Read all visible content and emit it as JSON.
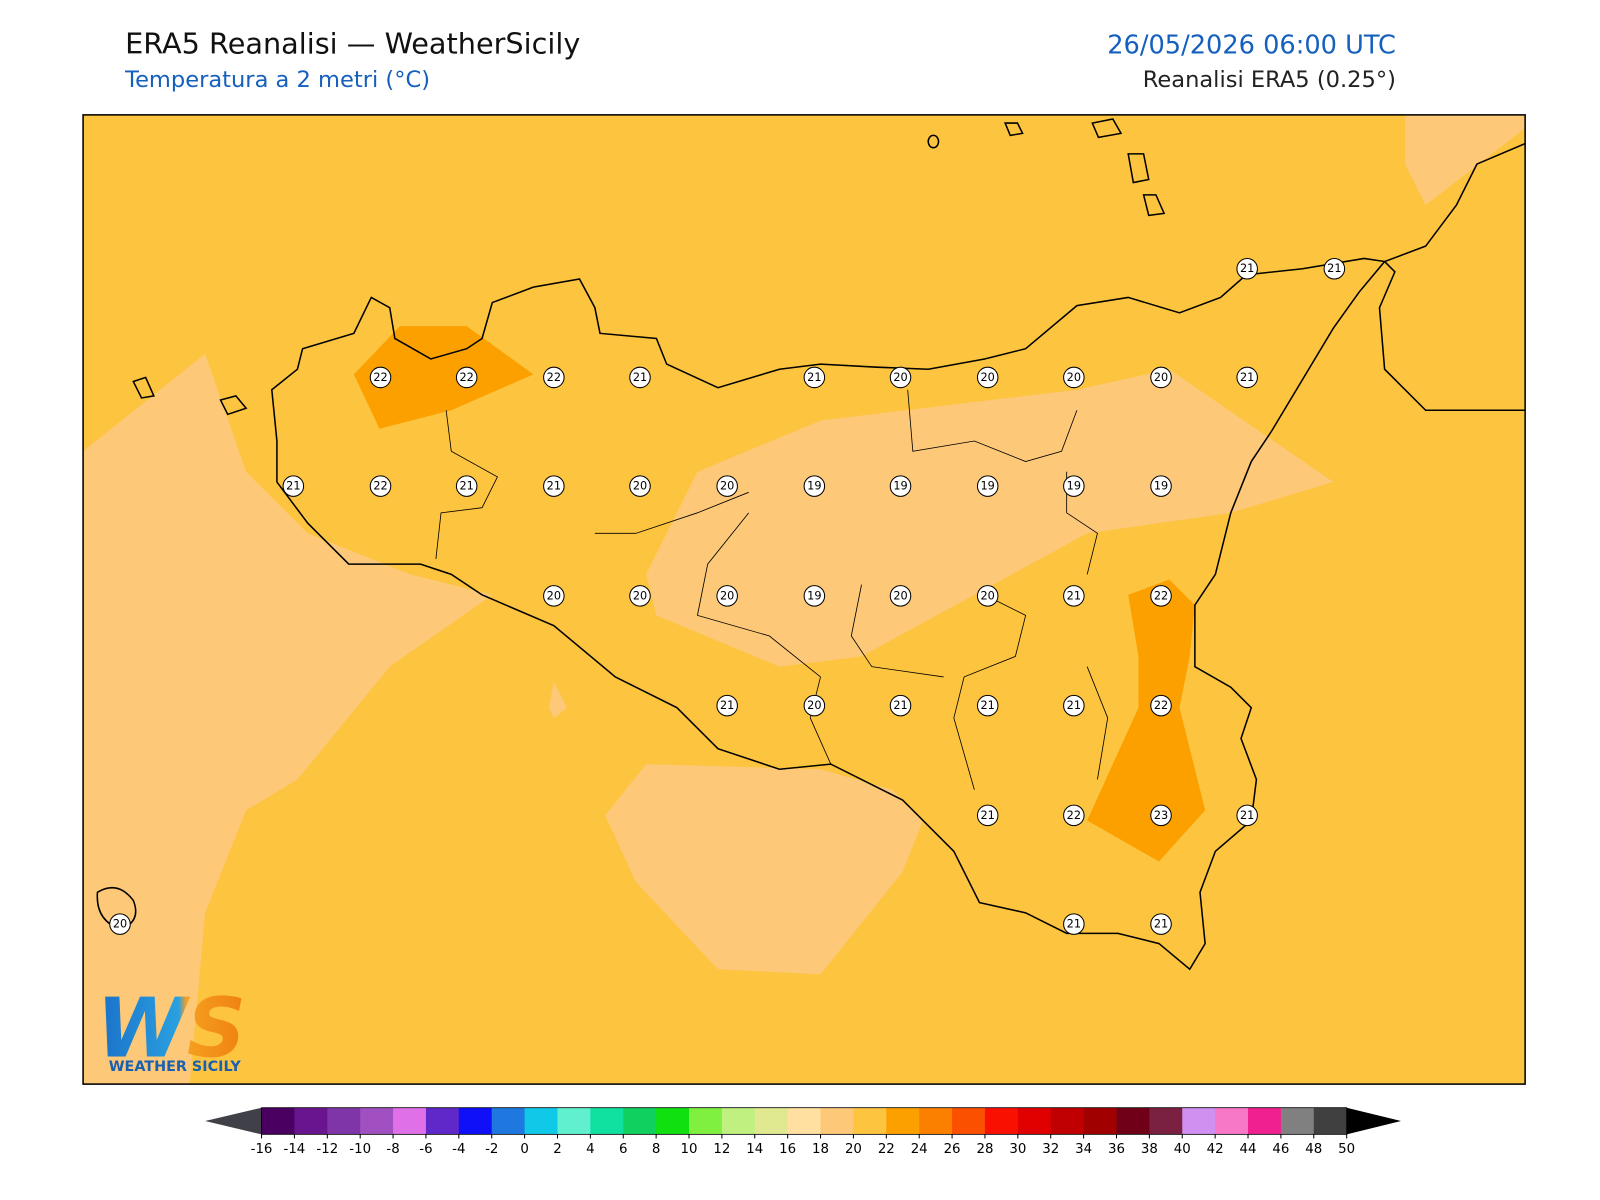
{
  "header": {
    "title": "ERA5 Reanalisi — WeatherSicily",
    "subtitle": "Temperatura a 2 metri (°C)",
    "date": "26/05/2026 06:00 UTC",
    "source": "Reanalisi ERA5 (0.25°)"
  },
  "stations": [
    21,
    21,
    22,
    22,
    22,
    21,
    21,
    20,
    20,
    20,
    20,
    21,
    21,
    22,
    21,
    21,
    20,
    20,
    19,
    19,
    19,
    19,
    19,
    20,
    20,
    20,
    19,
    20,
    20,
    21,
    22,
    21,
    20,
    21,
    21,
    21,
    22,
    21,
    22,
    23,
    21,
    20,
    21,
    21
  ],
  "colorbar": {
    "ticks": [
      -16,
      -14,
      -12,
      -10,
      -8,
      -6,
      -4,
      -2,
      0,
      2,
      4,
      6,
      8,
      10,
      12,
      14,
      16,
      18,
      20,
      22,
      24,
      26,
      28,
      30,
      32,
      34,
      36,
      38,
      40,
      42,
      44,
      46,
      48,
      50
    ],
    "colors": [
      "#4a0060",
      "#6a1590",
      "#7f35a8",
      "#a050c0",
      "#e070e8",
      "#6028c8",
      "#1010f8",
      "#1e78e0",
      "#10c8e8",
      "#60f0d0",
      "#10e0a0",
      "#10d060",
      "#10e010",
      "#80f040",
      "#c0f080",
      "#e0e890",
      "#ffe0a0",
      "#fdc878",
      "#fdc43f",
      "#fca000",
      "#fc8000",
      "#fa5000",
      "#fa1000",
      "#e00000",
      "#c00000",
      "#a00000",
      "#700018",
      "#7a2040",
      "#d090f0",
      "#f878c8",
      "#f02090",
      "#808080",
      "#404040"
    ],
    "under": "#404048",
    "over": "#000000"
  },
  "logo": {
    "mark": "WS",
    "text": "WEATHER SICILY"
  }
}
